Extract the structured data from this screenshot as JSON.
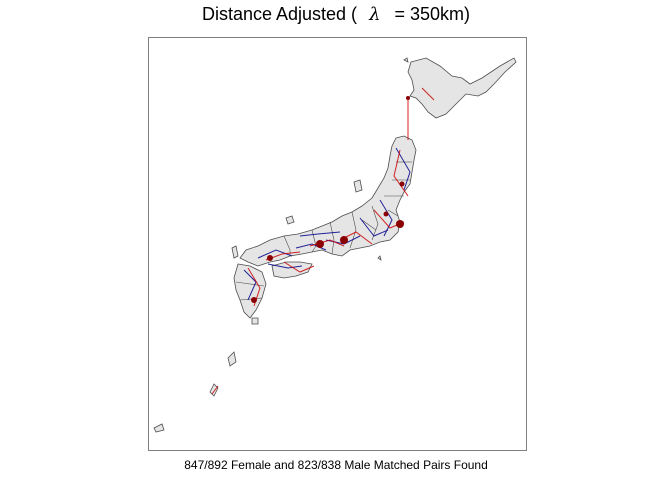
{
  "title": {
    "prefix": "Distance Adjusted (",
    "symbol": "λ",
    "suffix": "= 350km)"
  },
  "caption": "847/892 Female and 823/838 Male Matched Pairs Found",
  "colors": {
    "land_fill": "#e5e5e5",
    "border": "#4d4d4d",
    "female_links": "#00008b",
    "male_links": "#cd0000",
    "frame": "#7f7f7f"
  },
  "legend": []
}
